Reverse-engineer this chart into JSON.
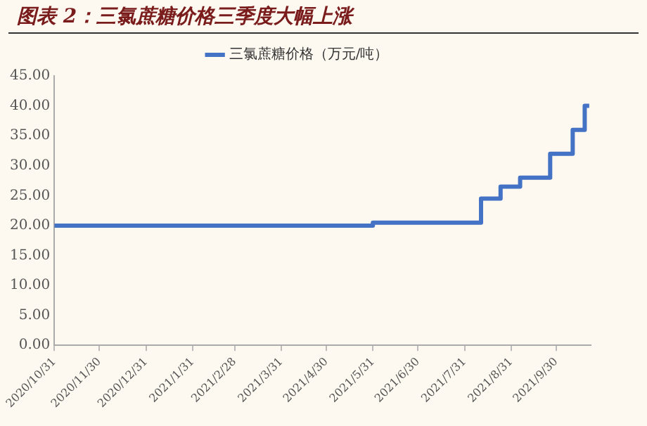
{
  "chart_data": {
    "type": "step",
    "title": "图表 2：三氯蔗糖价格三季度大幅上涨",
    "series": [
      {
        "name": "三氯蔗糖价格（万元/吨）",
        "color": "#4472c4",
        "x": [
          "2020-10-31",
          "2021-05-31",
          "2021-08-11",
          "2021-08-24",
          "2021-09-06",
          "2021-09-26",
          "2021-10-11",
          "2021-10-19",
          "2021-10-22"
        ],
        "values": [
          20,
          20.5,
          24.5,
          26.5,
          28,
          32,
          36,
          40,
          40
        ]
      }
    ],
    "xlim": [
      "2020-10-31",
      "2021-10-23"
    ],
    "xticks": [
      {
        "value": "2020-10-31",
        "label": "2020/10/31"
      },
      {
        "value": "2020-11-30",
        "label": "2020/11/30"
      },
      {
        "value": "2020-12-31",
        "label": "2020/12/31"
      },
      {
        "value": "2021-01-31",
        "label": "2021/1/31"
      },
      {
        "value": "2021-02-28",
        "label": "2021/2/28"
      },
      {
        "value": "2021-03-31",
        "label": "2021/3/31"
      },
      {
        "value": "2021-04-30",
        "label": "2021/4/30"
      },
      {
        "value": "2021-05-31",
        "label": "2021/5/31"
      },
      {
        "value": "2021-06-30",
        "label": "2021/6/30"
      },
      {
        "value": "2021-07-31",
        "label": "2021/7/31"
      },
      {
        "value": "2021-08-31",
        "label": "2021/8/31"
      },
      {
        "value": "2021-09-30",
        "label": "2021/9/30"
      }
    ],
    "ylim": [
      0,
      45
    ],
    "yticks": [
      {
        "value": 0,
        "label": "0.00"
      },
      {
        "value": 5,
        "label": "5.00"
      },
      {
        "value": 10,
        "label": "10.00"
      },
      {
        "value": 15,
        "label": "15.00"
      },
      {
        "value": 20,
        "label": "20.00"
      },
      {
        "value": 25,
        "label": "25.00"
      },
      {
        "value": 30,
        "label": "30.00"
      },
      {
        "value": 35,
        "label": "35.00"
      },
      {
        "value": 40,
        "label": "40.00"
      },
      {
        "value": 45,
        "label": "45.00"
      }
    ],
    "grid": false,
    "legend": "top",
    "marker": "none",
    "line_style": "solid"
  }
}
